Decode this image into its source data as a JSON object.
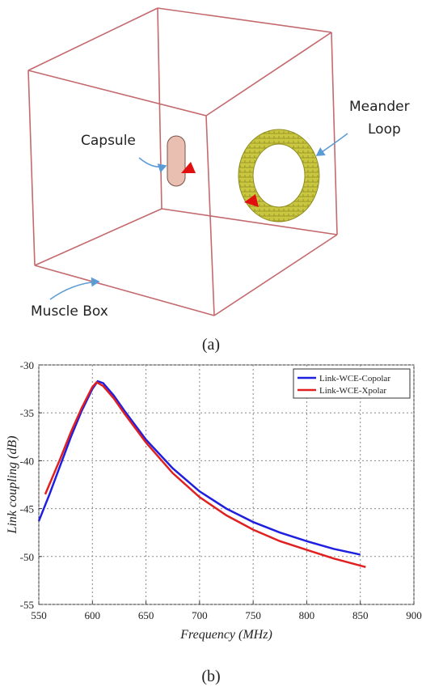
{
  "diagram": {
    "labels": {
      "capsule": "Capsule",
      "meander": "Meander",
      "loop": "Loop",
      "muscle_box": "Muscle Box"
    },
    "caption": "(a)"
  },
  "chart_data": {
    "type": "line",
    "caption": "(b)",
    "xlabel": "Frequency (MHz)",
    "ylabel": "Link coupling (dB)",
    "xlim": [
      550,
      900
    ],
    "xticks": [
      550,
      600,
      650,
      700,
      750,
      800,
      850,
      900
    ],
    "ylim": [
      -55,
      -30
    ],
    "yticks": [
      -55,
      -50,
      -45,
      -40,
      -35,
      -30
    ],
    "grid": true,
    "legend": "upper right",
    "series": [
      {
        "name": "Link-WCE-Copolar",
        "color": "#1f1fe0",
        "x": [
          550,
          560,
          570,
          580,
          590,
          600,
          605,
          610,
          620,
          630,
          640,
          650,
          675,
          700,
          725,
          750,
          775,
          800,
          825,
          850
        ],
        "values": [
          -46.3,
          -43.5,
          -40.5,
          -37.5,
          -34.8,
          -32.5,
          -31.7,
          -31.9,
          -33.2,
          -34.8,
          -36.3,
          -37.8,
          -40.8,
          -43.2,
          -45.0,
          -46.4,
          -47.5,
          -48.4,
          -49.2,
          -49.8
        ]
      },
      {
        "name": "Link-WCE-Xpolar",
        "color": "#e02020",
        "x": [
          556,
          570,
          580,
          590,
          600,
          604,
          610,
          620,
          630,
          640,
          650,
          675,
          700,
          725,
          750,
          775,
          800,
          825,
          855
        ],
        "values": [
          -43.5,
          -39.8,
          -37.0,
          -34.5,
          -32.3,
          -31.8,
          -32.2,
          -33.5,
          -35.1,
          -36.6,
          -38.1,
          -41.3,
          -43.8,
          -45.7,
          -47.2,
          -48.4,
          -49.3,
          -50.2,
          -51.1
        ]
      }
    ]
  }
}
